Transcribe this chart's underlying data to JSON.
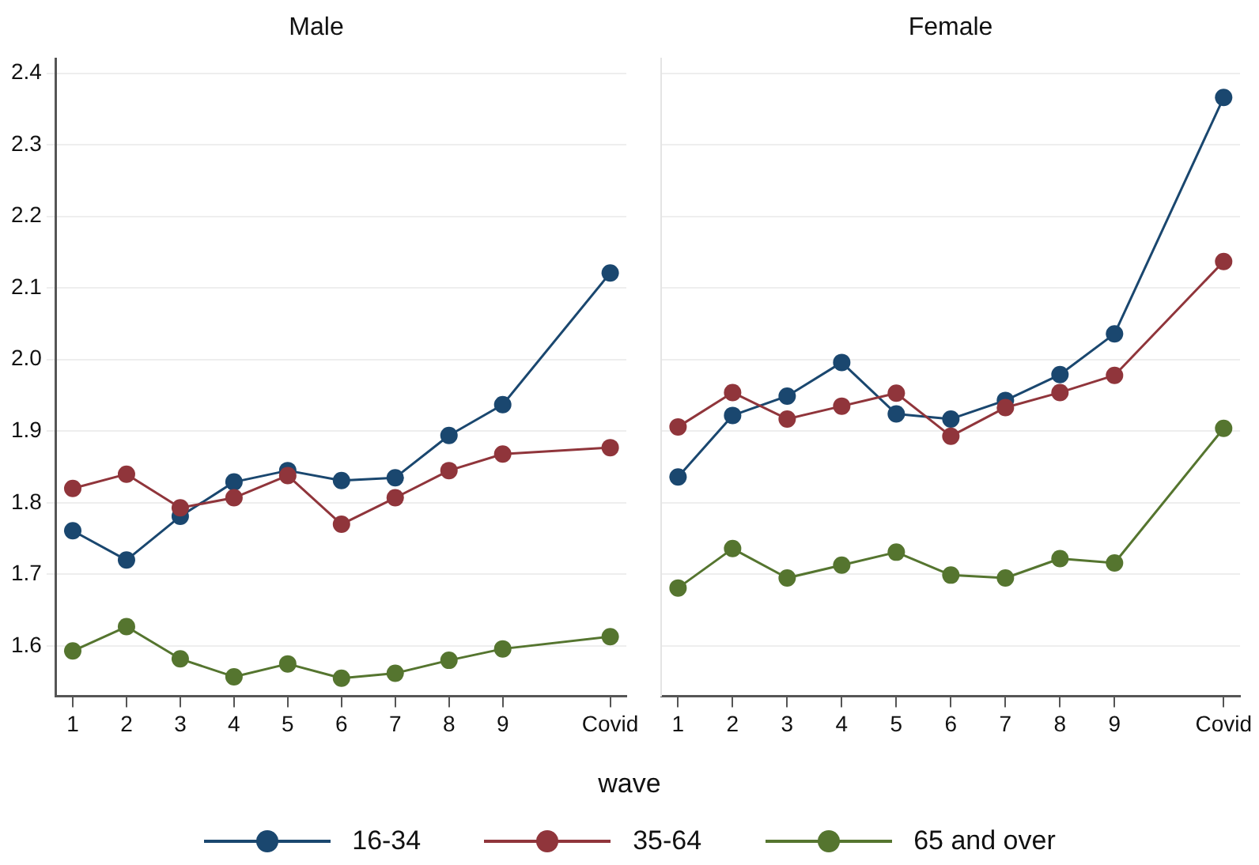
{
  "chart_data": [
    {
      "type": "line",
      "title": "Male",
      "xlabel": "wave",
      "x": [
        1,
        2,
        3,
        4,
        5,
        6,
        7,
        8,
        9,
        11
      ],
      "xlim": [
        0.69,
        11.3
      ],
      "xticks": [
        1,
        2,
        3,
        4,
        5,
        6,
        7,
        8,
        9,
        {
          "value": 11,
          "label": "Covid"
        }
      ],
      "ylim": [
        1.53,
        2.42
      ],
      "yticks": [
        1.6,
        1.7,
        1.8,
        1.9,
        {
          "value": 2,
          "label": "2.0"
        },
        2.1,
        2.2,
        2.3,
        2.4
      ],
      "grid": "y",
      "legend": "bottom",
      "marker": "circle",
      "line_style": "solid",
      "series": [
        {
          "name": "16-34",
          "color": "#1a476f",
          "values": [
            1.761,
            1.72,
            1.781,
            1.829,
            1.845,
            1.831,
            1.835,
            1.894,
            1.937,
            2.121
          ]
        },
        {
          "name": "35-64",
          "color": "#90353b",
          "values": [
            1.82,
            1.84,
            1.793,
            1.807,
            1.838,
            1.77,
            1.807,
            1.845,
            1.868,
            1.877
          ]
        },
        {
          "name": "65 and over",
          "color": "#55752f",
          "values": [
            1.593,
            1.627,
            1.582,
            1.557,
            1.575,
            1.555,
            1.562,
            1.58,
            1.596,
            1.613
          ]
        }
      ]
    },
    {
      "type": "line",
      "title": "Female",
      "x": [
        1,
        2,
        3,
        4,
        5,
        6,
        7,
        8,
        9,
        11
      ],
      "xlim": [
        0.69,
        11.3
      ],
      "xticks": [
        1,
        2,
        3,
        4,
        5,
        6,
        7,
        8,
        9,
        {
          "value": 11,
          "label": "Covid"
        }
      ],
      "ylim": [
        1.53,
        2.42
      ],
      "yticks": [
        1.6,
        1.7,
        1.8,
        1.9,
        2.0,
        2.1,
        2.2,
        2.3,
        2.4
      ],
      "tick_labels": "x",
      "grid": "y",
      "marker": "circle",
      "line_style": "solid",
      "series": [
        {
          "color": "#1a476f",
          "values": [
            1.836,
            1.922,
            1.949,
            1.996,
            1.924,
            1.917,
            1.943,
            1.979,
            2.036,
            2.366
          ]
        },
        {
          "color": "#90353b",
          "values": [
            1.906,
            1.954,
            1.917,
            1.935,
            1.953,
            1.893,
            1.933,
            1.954,
            1.978,
            2.137
          ]
        },
        {
          "color": "#55752f",
          "values": [
            1.681,
            1.736,
            1.695,
            1.713,
            1.731,
            1.699,
            1.695,
            1.722,
            1.716,
            1.904
          ]
        }
      ]
    }
  ]
}
